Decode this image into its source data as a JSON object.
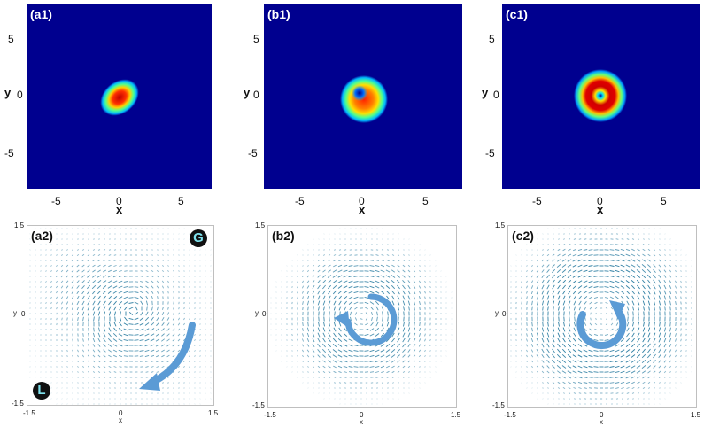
{
  "top_panels": [
    {
      "label": "(a1)",
      "y_ticks": [
        "5",
        "0",
        "-5"
      ],
      "x_ticks": [
        "-5",
        "0",
        "5"
      ],
      "ylabel": "y",
      "xlabel": "x"
    },
    {
      "label": "(b1)",
      "y_ticks": [
        "5",
        "0",
        "-5"
      ],
      "x_ticks": [
        "-5",
        "0",
        "5"
      ],
      "ylabel": "y",
      "xlabel": "x"
    },
    {
      "label": "(c1)",
      "y_ticks": [
        "5",
        "0",
        "-5"
      ],
      "x_ticks": [
        "-5",
        "0",
        "5"
      ],
      "ylabel": "y",
      "xlabel": "x"
    }
  ],
  "bottom_panels": [
    {
      "label": "(a2)",
      "y_top": "1.5",
      "y_mid": "0",
      "y_bot": "-1.5",
      "x_left": "-1.5",
      "x_mid": "0",
      "x_right": "1.5",
      "ylabel": "y",
      "xlabel": "x",
      "badge_g": "G",
      "badge_l": "L"
    },
    {
      "label": "(b2)",
      "y_top": "1.5",
      "y_mid": "0",
      "y_bot": "-1.5",
      "x_left": "-1.5",
      "x_mid": "0",
      "x_right": "1.5",
      "ylabel": "y",
      "xlabel": "x"
    },
    {
      "label": "(c2)",
      "y_top": "1.5",
      "y_mid": "0",
      "y_bot": "-1.5",
      "x_left": "-1.5",
      "x_mid": "0",
      "x_right": "1.5",
      "ylabel": "y",
      "xlabel": "x"
    }
  ],
  "colors": {
    "background_blue": "#00008f",
    "arrow_blue": "#5b9bd5",
    "quiver": "#2f7fa3"
  }
}
